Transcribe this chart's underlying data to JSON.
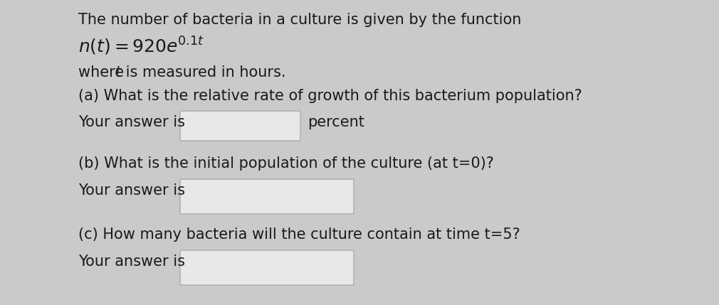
{
  "background_color": "#c8cbc8",
  "text_color": "#1a1a1a",
  "line1": "The number of bacteria in a culture is given by the function",
  "line4": "(a) What is the relative rate of growth of this bacterium population?",
  "line5_prefix": "Your answer is",
  "line5_suffix": "percent",
  "line6": "(b) What is the initial population of the culture (at t=0)?",
  "line7_prefix": "Your answer is",
  "line8": "(c) How many bacteria will the culture contain at time t=5?",
  "line9_prefix": "Your answer is",
  "box_color": "#e8e8e8",
  "box_edge_color": "#aaaaaa",
  "font_size": 15,
  "math_font_size": 17
}
